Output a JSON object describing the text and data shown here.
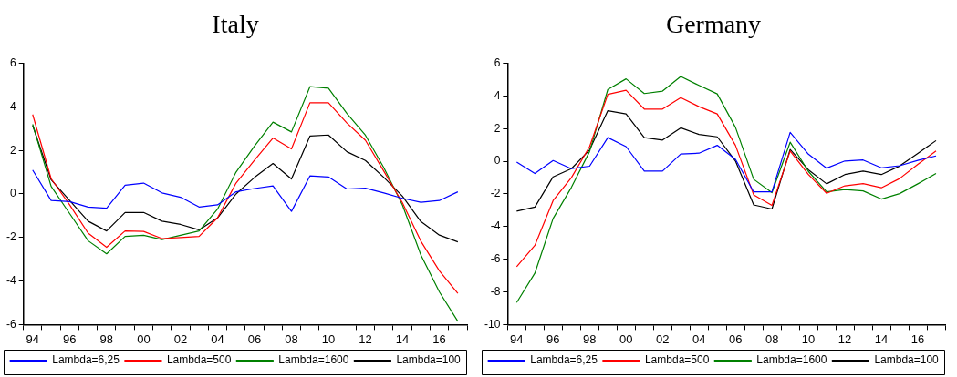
{
  "chart_data": [
    {
      "type": "line",
      "title": "Italy",
      "categories": [
        "94",
        null,
        "96",
        null,
        "98",
        null,
        "00",
        null,
        "02",
        null,
        "04",
        null,
        "06",
        null,
        "08",
        null,
        "10",
        null,
        "12",
        null,
        "14",
        null,
        "16",
        null
      ],
      "ylim": [
        -6,
        6
      ],
      "yticks": [
        -6,
        -4,
        -2,
        0,
        2,
        4,
        6
      ],
      "grid": false,
      "legend": "bottom",
      "marker": "none",
      "line_style": "solid",
      "series": [
        {
          "name": "Lambda=6,25",
          "color": "#0000ff",
          "values": [
            1.1,
            -0.3,
            -0.35,
            -0.6,
            -0.65,
            0.4,
            0.5,
            0.05,
            -0.15,
            -0.6,
            -0.5,
            0.1,
            0.25,
            0.37,
            -0.8,
            0.83,
            0.78,
            0.23,
            0.27,
            0.05,
            -0.2,
            -0.38,
            -0.3,
            0.1
          ]
        },
        {
          "name": "Lambda=500",
          "color": "#ff0000",
          "values": [
            3.65,
            0.7,
            -0.5,
            -1.8,
            -2.45,
            -1.7,
            -1.72,
            -2.05,
            -2.0,
            -1.95,
            -1.1,
            0.5,
            1.55,
            2.57,
            2.07,
            4.19,
            4.19,
            3.26,
            2.47,
            1.04,
            -0.4,
            -2.17,
            -3.53,
            -4.57
          ]
        },
        {
          "name": "Lambda=1600",
          "color": "#008000",
          "values": [
            3.2,
            0.35,
            -0.9,
            -2.15,
            -2.75,
            -1.95,
            -1.9,
            -2.1,
            -1.9,
            -1.7,
            -0.7,
            1.0,
            2.2,
            3.3,
            2.85,
            4.93,
            4.86,
            3.7,
            2.7,
            1.2,
            -0.5,
            -2.8,
            -4.5,
            -5.85
          ]
        },
        {
          "name": "Lambda=100",
          "color": "#000000",
          "values": [
            3.15,
            0.65,
            -0.3,
            -1.25,
            -1.7,
            -0.85,
            -0.85,
            -1.25,
            -1.4,
            -1.65,
            -1.1,
            0.0,
            0.76,
            1.4,
            0.69,
            2.66,
            2.71,
            1.94,
            1.54,
            0.76,
            -0.1,
            -1.27,
            -1.89,
            -2.2
          ]
        }
      ]
    },
    {
      "type": "line",
      "title": "Germany",
      "categories": [
        "94",
        null,
        "96",
        null,
        "98",
        null,
        "00",
        null,
        "02",
        null,
        "04",
        null,
        "06",
        null,
        "08",
        null,
        "10",
        null,
        "12",
        null,
        "14",
        null,
        "16",
        null
      ],
      "ylim": [
        -10,
        6
      ],
      "yticks": [
        -10,
        -8,
        -6,
        -4,
        -2,
        0,
        2,
        4,
        6
      ],
      "grid": false,
      "legend": "bottom",
      "marker": "none",
      "line_style": "solid",
      "series": [
        {
          "name": "Lambda=6,25",
          "color": "#0000ff",
          "values": [
            -0.05,
            -0.75,
            0.05,
            -0.45,
            -0.3,
            1.45,
            0.9,
            -0.6,
            -0.6,
            0.45,
            0.5,
            0.98,
            0.12,
            -1.87,
            -1.87,
            1.77,
            0.44,
            -0.42,
            0.02,
            0.08,
            -0.4,
            -0.27,
            0.06,
            0.33
          ]
        },
        {
          "name": "Lambda=500",
          "color": "#ff0000",
          "values": [
            -6.45,
            -5.15,
            -2.4,
            -1.0,
            0.9,
            4.1,
            4.35,
            3.2,
            3.2,
            3.9,
            3.35,
            2.9,
            0.98,
            -2.06,
            -2.7,
            0.63,
            -0.81,
            -1.96,
            -1.5,
            -1.37,
            -1.62,
            -1.06,
            -0.19,
            0.63
          ]
        },
        {
          "name": "Lambda=1600",
          "color": "#008000",
          "values": [
            -8.65,
            -6.85,
            -3.5,
            -1.6,
            0.6,
            4.4,
            5.05,
            4.15,
            4.3,
            5.2,
            4.65,
            4.13,
            2.08,
            -1.1,
            -1.92,
            1.17,
            -0.62,
            -1.87,
            -1.73,
            -1.81,
            -2.31,
            -1.98,
            -1.38,
            -0.75
          ]
        },
        {
          "name": "Lambda=100",
          "color": "#000000",
          "values": [
            -3.05,
            -2.8,
            -0.95,
            -0.45,
            0.7,
            3.1,
            2.9,
            1.45,
            1.3,
            2.05,
            1.65,
            1.5,
            0.02,
            -2.67,
            -2.92,
            0.73,
            -0.52,
            -1.38,
            -0.81,
            -0.6,
            -0.81,
            -0.29,
            0.48,
            1.27
          ]
        }
      ]
    }
  ]
}
